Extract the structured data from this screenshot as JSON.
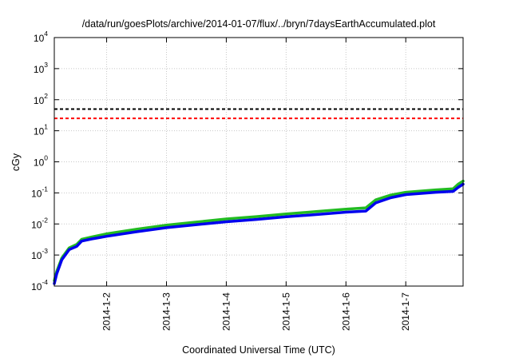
{
  "chart_data": {
    "type": "line",
    "title": "/data/run/goesPlots/archive/2014-01-07/flux/../bryn/7daysEarthAccumulated.plot",
    "xlabel": "Coordinated Universal Time (UTC)",
    "ylabel": "cGy",
    "yscale": "log",
    "ylim": [
      0.0001,
      10000
    ],
    "y_ticks": [
      {
        "base": "10",
        "exp": "-4",
        "value": 0.0001
      },
      {
        "base": "10",
        "exp": "-3",
        "value": 0.001
      },
      {
        "base": "10",
        "exp": "-2",
        "value": 0.01
      },
      {
        "base": "10",
        "exp": "-1",
        "value": 0.1
      },
      {
        "base": "10",
        "exp": "0",
        "value": 1
      },
      {
        "base": "10",
        "exp": "1",
        "value": 10
      },
      {
        "base": "10",
        "exp": "2",
        "value": 100
      },
      {
        "base": "10",
        "exp": "3",
        "value": 1000
      },
      {
        "base": "10",
        "exp": "4",
        "value": 10000
      }
    ],
    "xlim": [
      "2014-01-01 03:00",
      "2014-01-07 23:00"
    ],
    "x_ticks": [
      "2014-1-2",
      "2014-1-3",
      "2014-1-4",
      "2014-1-5",
      "2014-1-6",
      "2014-1-7"
    ],
    "grid": true,
    "thresholds": [
      {
        "value": 50,
        "color": "#000000",
        "style": "dashed"
      },
      {
        "value": 25,
        "color": "#ff0000",
        "style": "dashed"
      }
    ],
    "series": [
      {
        "color": "#22bb22",
        "points": [
          [
            "2014-01-01 03:00",
            0.00015
          ],
          [
            "2014-01-01 04:00",
            0.0003
          ],
          [
            "2014-01-01 06:00",
            0.0008
          ],
          [
            "2014-01-01 09:00",
            0.0017
          ],
          [
            "2014-01-01 12:00",
            0.0022
          ],
          [
            "2014-01-01 14:00",
            0.0032
          ],
          [
            "2014-01-01 18:00",
            0.0038
          ],
          [
            "2014-01-02 00:00",
            0.0048
          ],
          [
            "2014-01-02 12:00",
            0.0068
          ],
          [
            "2014-01-03 00:00",
            0.0092
          ],
          [
            "2014-01-03 12:00",
            0.0115
          ],
          [
            "2014-01-04 00:00",
            0.0145
          ],
          [
            "2014-01-04 12:00",
            0.0172
          ],
          [
            "2014-01-05 00:00",
            0.021
          ],
          [
            "2014-01-05 12:00",
            0.025
          ],
          [
            "2014-01-06 00:00",
            0.03
          ],
          [
            "2014-01-06 08:00",
            0.033
          ],
          [
            "2014-01-06 12:00",
            0.06
          ],
          [
            "2014-01-06 18:00",
            0.085
          ],
          [
            "2014-01-07 00:00",
            0.105
          ],
          [
            "2014-01-07 12:00",
            0.125
          ],
          [
            "2014-01-07 19:00",
            0.135
          ],
          [
            "2014-01-07 21:00",
            0.19
          ],
          [
            "2014-01-07 23:00",
            0.24
          ]
        ]
      },
      {
        "color": "#0000ee",
        "points": [
          [
            "2014-01-01 03:00",
            0.00012
          ],
          [
            "2014-01-01 04:00",
            0.00025
          ],
          [
            "2014-01-01 06:00",
            0.0007
          ],
          [
            "2014-01-01 09:00",
            0.0015
          ],
          [
            "2014-01-01 12:00",
            0.0019
          ],
          [
            "2014-01-01 14:00",
            0.0028
          ],
          [
            "2014-01-01 18:00",
            0.0033
          ],
          [
            "2014-01-02 00:00",
            0.004
          ],
          [
            "2014-01-02 12:00",
            0.0056
          ],
          [
            "2014-01-03 00:00",
            0.0076
          ],
          [
            "2014-01-03 12:00",
            0.0095
          ],
          [
            "2014-01-04 00:00",
            0.0118
          ],
          [
            "2014-01-04 12:00",
            0.014
          ],
          [
            "2014-01-05 00:00",
            0.017
          ],
          [
            "2014-01-05 12:00",
            0.02
          ],
          [
            "2014-01-06 00:00",
            0.024
          ],
          [
            "2014-01-06 08:00",
            0.026
          ],
          [
            "2014-01-06 12:00",
            0.048
          ],
          [
            "2014-01-06 18:00",
            0.07
          ],
          [
            "2014-01-07 00:00",
            0.088
          ],
          [
            "2014-01-07 12:00",
            0.105
          ],
          [
            "2014-01-07 19:00",
            0.112
          ],
          [
            "2014-01-07 21:00",
            0.15
          ],
          [
            "2014-01-07 23:00",
            0.19
          ]
        ]
      }
    ]
  }
}
